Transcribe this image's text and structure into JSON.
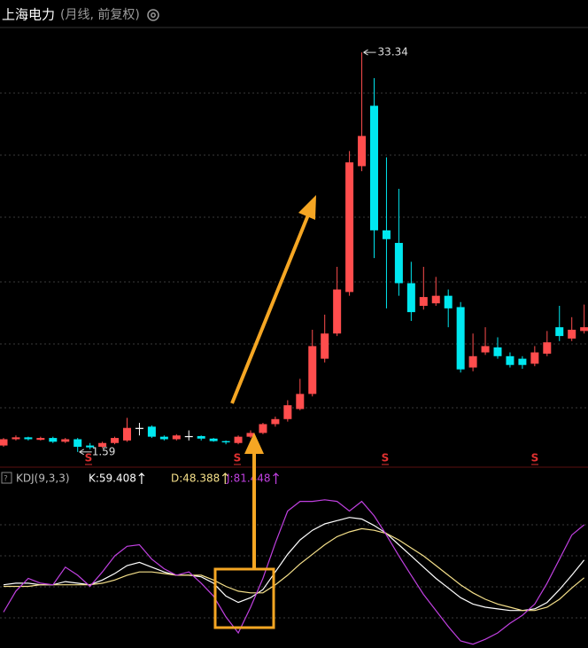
{
  "chart_data": [
    {
      "type": "candlestick",
      "title": "上海电力",
      "subtitle": "(月线, 前复权)",
      "open": [
        2.1,
        2.6,
        2.75,
        2.55,
        2.7,
        2.4,
        2.6,
        2.1,
        2.0,
        2.3,
        2.5,
        3.5,
        3.6,
        2.8,
        2.6,
        2.85,
        2.85,
        2.65,
        2.45,
        2.3,
        2.8,
        3.1,
        3.8,
        4.2,
        5.0,
        6.2,
        9.0,
        11.0,
        14.3,
        24.3,
        29.1,
        19.2,
        18.2,
        15.0,
        13.2,
        13.4,
        14.0,
        13.1,
        8.3,
        9.5,
        9.9,
        9.2,
        9.0,
        8.6,
        9.4,
        11.5,
        10.6,
        11.2
      ],
      "close": [
        2.6,
        2.75,
        2.6,
        2.7,
        2.4,
        2.6,
        2.0,
        1.95,
        2.3,
        2.7,
        3.5,
        3.5,
        2.8,
        2.6,
        2.9,
        2.85,
        2.65,
        2.45,
        2.35,
        2.8,
        3.1,
        3.8,
        4.2,
        5.3,
        6.2,
        10.0,
        11.0,
        14.5,
        24.6,
        26.7,
        19.2,
        18.5,
        15.0,
        12.7,
        13.9,
        14.0,
        13.0,
        8.15,
        9.2,
        10.0,
        9.2,
        8.5,
        8.5,
        9.5,
        10.3,
        10.8,
        11.3,
        11.5
      ],
      "high": [
        2.7,
        2.9,
        2.8,
        2.8,
        2.8,
        2.7,
        2.7,
        2.3,
        2.4,
        2.8,
        4.3,
        3.9,
        3.7,
        2.9,
        3.0,
        3.3,
        2.9,
        2.7,
        2.5,
        2.9,
        3.3,
        3.9,
        4.4,
        5.7,
        7.4,
        11.3,
        12.5,
        16.3,
        25.5,
        33.34,
        31.3,
        25.0,
        22.5,
        16.7,
        16.3,
        15.5,
        14.5,
        13.5,
        11.0,
        11.5,
        10.7,
        9.5,
        9.2,
        10.0,
        11.2,
        13.2,
        12.3,
        13.3
      ],
      "low": [
        2.0,
        2.5,
        2.5,
        2.5,
        2.3,
        2.3,
        1.59,
        1.8,
        1.9,
        2.2,
        2.4,
        2.9,
        2.7,
        2.5,
        2.5,
        2.5,
        2.5,
        2.4,
        2.2,
        2.2,
        2.7,
        3.0,
        3.6,
        4.0,
        4.9,
        6.0,
        8.7,
        10.8,
        14.0,
        23.9,
        17.0,
        13.0,
        14.0,
        12.0,
        12.9,
        13.2,
        11.5,
        7.9,
        8.0,
        9.3,
        9.0,
        8.3,
        8.2,
        8.4,
        9.2,
        10.4,
        10.4,
        11.0
      ],
      "ylim": [
        0.38,
        35.32
      ],
      "up_color": "#ff4d4d",
      "down_color": "#00e8f0",
      "doji_color": "#ffffff",
      "signals": [
        "S",
        "S",
        "S",
        "S"
      ]
    },
    {
      "type": "line",
      "title": "KDJ(9,3,3)",
      "ylim": [
        4.6,
        107.4
      ],
      "series": [
        {
          "name": "K:59.408",
          "color": "#ffffff",
          "values": [
            44,
            45,
            45,
            44,
            44,
            46,
            45,
            44,
            47,
            51,
            56,
            58,
            55,
            52,
            50,
            50,
            49,
            45,
            37,
            33,
            36,
            41,
            52,
            63,
            72,
            78,
            82,
            84,
            86,
            85,
            81,
            76,
            69,
            62,
            55,
            48,
            42,
            36,
            32,
            30,
            29,
            28,
            28,
            29,
            33,
            41,
            50,
            59.408
          ]
        },
        {
          "name": "D:48.388",
          "color": "#f5e08a",
          "values": [
            43,
            43,
            43,
            44,
            44,
            44,
            44,
            44,
            45,
            47,
            50,
            52,
            52,
            51,
            50,
            50,
            50,
            47,
            43,
            40,
            39,
            39,
            44,
            50,
            57,
            63,
            69,
            74,
            77,
            79,
            78,
            76,
            72,
            67,
            62,
            56,
            50,
            44,
            39,
            35,
            32,
            30,
            28,
            28,
            30,
            35,
            42,
            48.388
          ]
        },
        {
          "name": "J:81.448",
          "color": "#c040e0",
          "values": [
            27,
            40,
            48,
            45,
            44,
            55,
            50,
            43,
            52,
            62,
            68,
            69,
            60,
            54,
            50,
            52,
            45,
            37,
            24,
            14,
            30,
            48,
            70,
            90,
            96,
            96,
            97,
            96,
            90,
            96,
            87,
            75,
            62,
            50,
            38,
            28,
            18,
            9,
            7,
            10,
            14,
            20,
            25,
            32,
            45,
            60,
            75,
            81.448
          ]
        }
      ]
    }
  ]
}
